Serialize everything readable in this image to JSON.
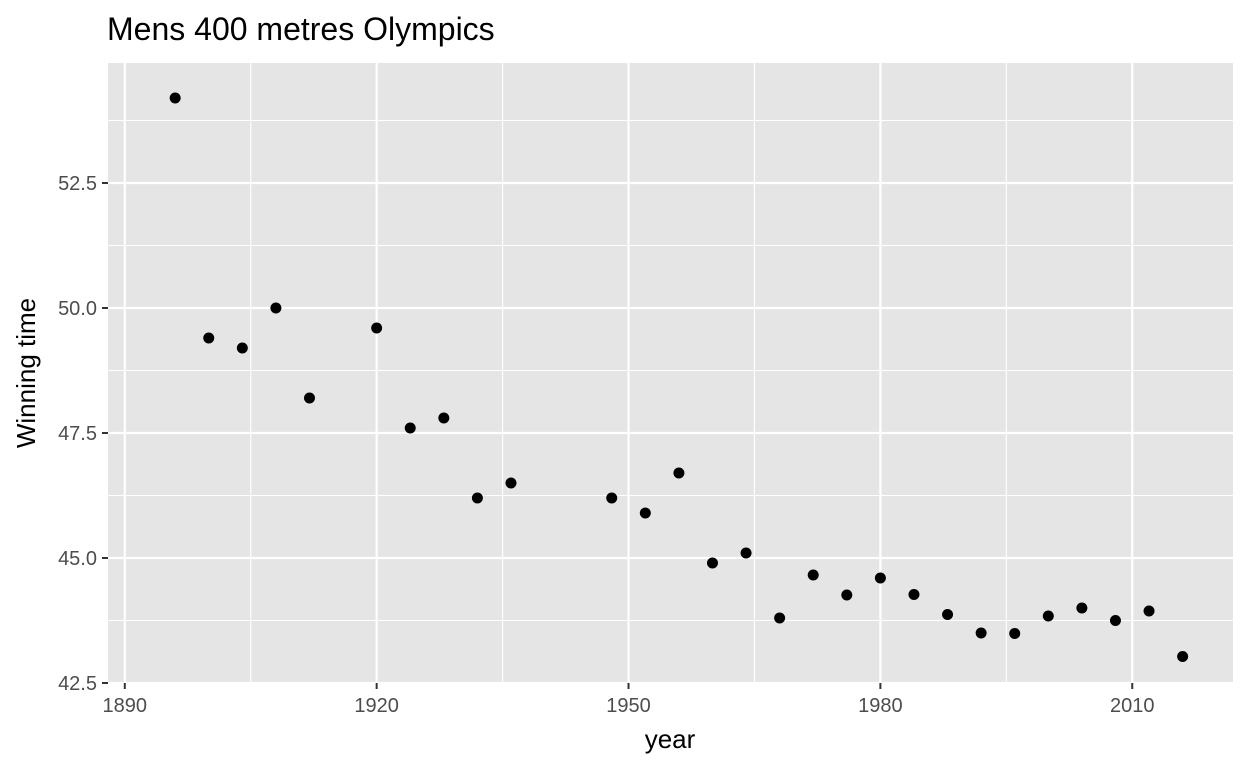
{
  "chart_data": {
    "type": "scatter",
    "title": "Mens 400 metres Olympics",
    "xlabel": "year",
    "ylabel": "Winning time",
    "xlim": [
      1888,
      2022
    ],
    "ylim": [
      42.5,
      54.9
    ],
    "x_ticks": [
      1890,
      1920,
      1950,
      1980,
      2010
    ],
    "x_minor_ticks": [
      1905,
      1935,
      1965,
      1995
    ],
    "y_ticks": [
      42.5,
      45.0,
      47.5,
      50.0,
      52.5
    ],
    "y_minor_ticks": [
      43.75,
      46.25,
      48.75,
      51.25,
      53.75
    ],
    "grid": true,
    "legend": "none",
    "colors": {
      "panel_background": "#e5e5e5",
      "grid": "#ffffff",
      "point": "#000000",
      "tick_text": "#4d4d4d",
      "tick_mark": "#333333"
    },
    "series": [
      {
        "x": [
          1896,
          1900,
          1904,
          1908,
          1912,
          1920,
          1924,
          1928,
          1932,
          1936,
          1948,
          1952,
          1956,
          1960,
          1964,
          1968,
          1972,
          1976,
          1980,
          1984,
          1988,
          1992,
          1996,
          2000,
          2004,
          2008,
          2012,
          2016
        ],
        "y": [
          54.2,
          49.4,
          49.2,
          50.0,
          48.2,
          49.6,
          47.6,
          47.8,
          46.2,
          46.5,
          46.2,
          45.9,
          46.7,
          44.9,
          45.1,
          43.8,
          44.66,
          44.26,
          44.6,
          44.27,
          43.87,
          43.5,
          43.49,
          43.84,
          44.0,
          43.75,
          43.94,
          43.03
        ]
      }
    ]
  }
}
